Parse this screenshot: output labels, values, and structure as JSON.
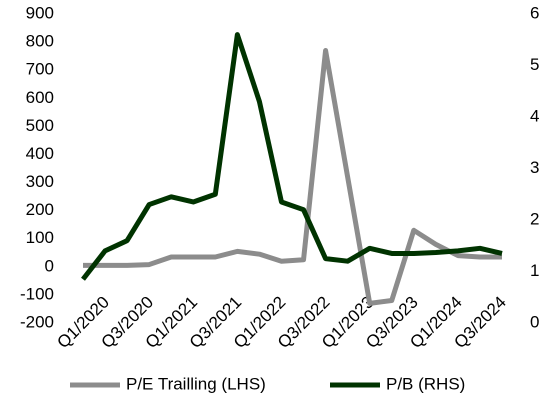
{
  "chart_data": {
    "type": "line",
    "categories": [
      "Q1/2020",
      null,
      "Q3/2020",
      null,
      "Q1/2021",
      null,
      "Q3/2021",
      null,
      "Q1/2022",
      null,
      "Q3/2022",
      null,
      "Q1/2023",
      null,
      "Q3/2023",
      null,
      "Q1/2024",
      null,
      "Q3/2024",
      null
    ],
    "series": [
      {
        "name": "P/E Trailling (LHS)",
        "color": "#8c8c8c",
        "axis": "y",
        "values": [
          5,
          5,
          5,
          8,
          35,
          35,
          35,
          55,
          45,
          20,
          25,
          770,
          320,
          -130,
          -120,
          130,
          80,
          40,
          35,
          35
        ]
      },
      {
        "name": "P/B (RHS)",
        "color": "#003300",
        "axis": "y2",
        "values": [
          0.85,
          1.4,
          1.6,
          2.3,
          2.45,
          2.35,
          2.5,
          5.6,
          4.3,
          2.35,
          2.2,
          1.25,
          1.2,
          1.45,
          1.35,
          1.35,
          1.37,
          1.4,
          1.45,
          1.35
        ]
      }
    ],
    "ylim": [
      -200,
      900
    ],
    "yticks": [
      -200,
      -100,
      0,
      100,
      200,
      300,
      400,
      500,
      600,
      700,
      800,
      900
    ],
    "y2lim": [
      0,
      6
    ],
    "y2ticks": [
      0,
      1,
      2,
      3,
      4,
      5,
      6
    ],
    "legend": "bottom",
    "grid": false
  }
}
